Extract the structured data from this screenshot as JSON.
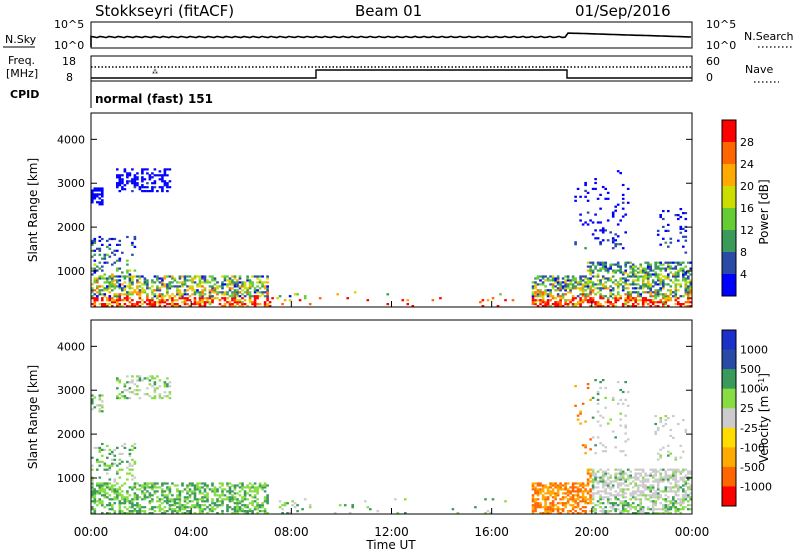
{
  "header": {
    "station": "Stokkseyri (fitACF)",
    "beam": "Beam 01",
    "date": "01/Sep/2016"
  },
  "noise_panel": {
    "left_label": "N.Sky",
    "left_ticks": [
      "10^5",
      "10^0"
    ],
    "right_label": "N.Search",
    "right_ticks": [
      "10^5",
      "10^0"
    ]
  },
  "freq_panel": {
    "left_label_1": "Freq.",
    "left_label_2": "[MHz]",
    "left_ticks": [
      "18",
      "8"
    ],
    "right_label": "Nave",
    "right_ticks": [
      "60",
      "0"
    ],
    "cpid_label": "CPID",
    "cpid_text": "normal (fast) 151"
  },
  "colors": {
    "power": [
      "#0000ff",
      "#2a4aa8",
      "#3a9a5a",
      "#66cc33",
      "#ccdd00",
      "#ffaa00",
      "#ff6600",
      "#ff0000"
    ],
    "velocity": [
      "#ff0000",
      "#ff6600",
      "#ffaa00",
      "#ffdd00",
      "#cccccc",
      "#88dd44",
      "#3a9a5a",
      "#2a4aa8",
      "#1a30c8"
    ]
  },
  "chart_data": [
    {
      "type": "heatmap",
      "name": "power",
      "ylabel": "Slant Range [km]",
      "yticks": [
        1000,
        2000,
        3000,
        4000
      ],
      "ylim": [
        180,
        4600
      ],
      "xlim": [
        0,
        24
      ],
      "colorbar_label": "Power [dB]",
      "colorbar_ticks": [
        "28",
        "24",
        "20",
        "16",
        "12",
        "8",
        "4"
      ]
    },
    {
      "type": "heatmap",
      "name": "velocity",
      "ylabel": "Slant Range [km]",
      "yticks": [
        1000,
        2000,
        3000,
        4000
      ],
      "ylim": [
        180,
        4600
      ],
      "xlim": [
        0,
        24
      ],
      "colorbar_label": "Velocity [m s",
      "colorbar_label_sup": "-1",
      "colorbar_label_end": "]",
      "colorbar_ticks": [
        "1000",
        "500",
        "100",
        "25",
        "-25",
        "-100",
        "-500",
        "-1000"
      ]
    }
  ],
  "time_axis": {
    "ticks": [
      "00:00",
      "04:00",
      "08:00",
      "12:00",
      "16:00",
      "20:00",
      "00:00"
    ],
    "label": "Time UT"
  }
}
